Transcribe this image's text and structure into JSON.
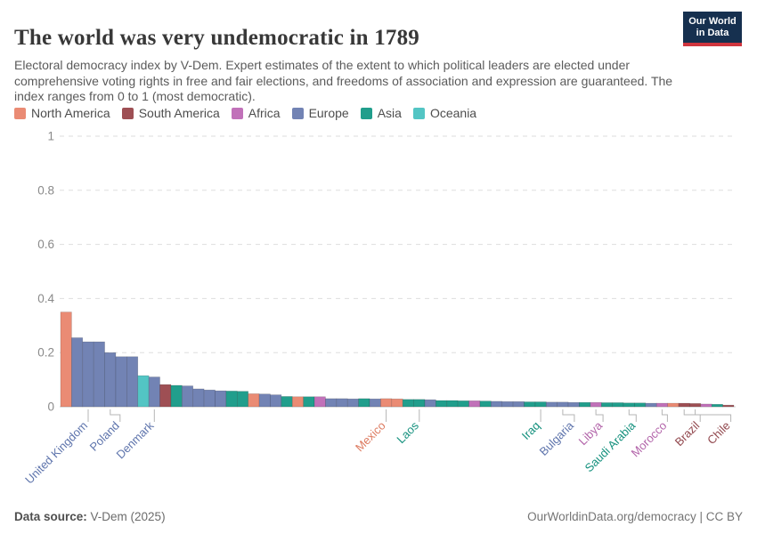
{
  "header": {
    "title": "The world was very undemocratic in 1789",
    "subtitle": "Electoral democracy index by V-Dem. Expert estimates of the extent to which political leaders are elected under comprehensive voting rights in free and fair elections, and freedoms of association and expression are guaranteed. The index ranges from 0 to 1 (most democratic)."
  },
  "logo": {
    "line1": "Our World",
    "line2": "in Data",
    "bg_color": "#16304f",
    "accent_color": "#d0353e"
  },
  "legend": [
    {
      "key": "NA",
      "label": "North America"
    },
    {
      "key": "SA",
      "label": "South America"
    },
    {
      "key": "AF",
      "label": "Africa"
    },
    {
      "key": "EU",
      "label": "Europe"
    },
    {
      "key": "AS",
      "label": "Asia"
    },
    {
      "key": "OC",
      "label": "Oceania"
    }
  ],
  "footer": {
    "source_label": "Data source:",
    "source_value": " V-Dem (2025)",
    "right_text": "OurWorldinData.org/democracy | CC BY"
  },
  "chart_data": {
    "type": "bar",
    "title": "Electoral democracy index, 1789",
    "ylabel": "",
    "xlabel": "",
    "ylim": [
      0,
      1
    ],
    "grid": "dashed-horizontal",
    "y_ticks": [
      {
        "value": 0,
        "label": "0"
      },
      {
        "value": 0.2,
        "label": "0.2"
      },
      {
        "value": 0.4,
        "label": "0.4"
      },
      {
        "value": 0.6,
        "label": "0.6"
      },
      {
        "value": 0.8,
        "label": "0.8"
      },
      {
        "value": 1,
        "label": "1"
      }
    ],
    "continents": {
      "NA": {
        "name": "North America",
        "fill": "#ea8b74",
        "text": "#dd7a5f"
      },
      "SA": {
        "name": "South America",
        "fill": "#9e4f54",
        "text": "#91474d"
      },
      "AF": {
        "name": "Africa",
        "fill": "#c171b9",
        "text": "#b263a9"
      },
      "EU": {
        "name": "Europe",
        "fill": "#7283b4",
        "text": "#5e74ac"
      },
      "AS": {
        "name": "Asia",
        "fill": "#219e8c",
        "text": "#15917e"
      },
      "OC": {
        "name": "Oceania",
        "fill": "#53c5c4",
        "text": "#3ab4b2"
      }
    },
    "bars": [
      {
        "v": 0.35,
        "c": "NA"
      },
      {
        "v": 0.255,
        "c": "EU"
      },
      {
        "v": 0.24,
        "c": "EU"
      },
      {
        "v": 0.24,
        "c": "EU"
      },
      {
        "v": 0.2,
        "c": "EU"
      },
      {
        "v": 0.185,
        "c": "EU"
      },
      {
        "v": 0.185,
        "c": "EU"
      },
      {
        "v": 0.115,
        "c": "OC"
      },
      {
        "v": 0.11,
        "c": "EU"
      },
      {
        "v": 0.082,
        "c": "SA"
      },
      {
        "v": 0.079,
        "c": "AS"
      },
      {
        "v": 0.077,
        "c": "EU"
      },
      {
        "v": 0.066,
        "c": "EU"
      },
      {
        "v": 0.062,
        "c": "EU"
      },
      {
        "v": 0.059,
        "c": "EU"
      },
      {
        "v": 0.058,
        "c": "AS"
      },
      {
        "v": 0.057,
        "c": "AS"
      },
      {
        "v": 0.048,
        "c": "NA"
      },
      {
        "v": 0.047,
        "c": "EU"
      },
      {
        "v": 0.044,
        "c": "EU"
      },
      {
        "v": 0.038,
        "c": "AS"
      },
      {
        "v": 0.037,
        "c": "NA"
      },
      {
        "v": 0.037,
        "c": "AS"
      },
      {
        "v": 0.037,
        "c": "AF"
      },
      {
        "v": 0.03,
        "c": "EU"
      },
      {
        "v": 0.03,
        "c": "EU"
      },
      {
        "v": 0.029,
        "c": "EU"
      },
      {
        "v": 0.03,
        "c": "AS"
      },
      {
        "v": 0.029,
        "c": "EU"
      },
      {
        "v": 0.03,
        "c": "NA"
      },
      {
        "v": 0.029,
        "c": "NA"
      },
      {
        "v": 0.027,
        "c": "AS"
      },
      {
        "v": 0.027,
        "c": "AS"
      },
      {
        "v": 0.026,
        "c": "EU"
      },
      {
        "v": 0.023,
        "c": "AS"
      },
      {
        "v": 0.023,
        "c": "AS"
      },
      {
        "v": 0.022,
        "c": "AS"
      },
      {
        "v": 0.022,
        "c": "AF"
      },
      {
        "v": 0.021,
        "c": "AS"
      },
      {
        "v": 0.02,
        "c": "EU"
      },
      {
        "v": 0.019,
        "c": "EU"
      },
      {
        "v": 0.019,
        "c": "EU"
      },
      {
        "v": 0.018,
        "c": "AS"
      },
      {
        "v": 0.018,
        "c": "AS"
      },
      {
        "v": 0.017,
        "c": "EU"
      },
      {
        "v": 0.017,
        "c": "EU"
      },
      {
        "v": 0.016,
        "c": "EU"
      },
      {
        "v": 0.016,
        "c": "AS"
      },
      {
        "v": 0.016,
        "c": "AF"
      },
      {
        "v": 0.015,
        "c": "AS"
      },
      {
        "v": 0.015,
        "c": "AS"
      },
      {
        "v": 0.014,
        "c": "AS"
      },
      {
        "v": 0.014,
        "c": "AS"
      },
      {
        "v": 0.013,
        "c": "EU"
      },
      {
        "v": 0.013,
        "c": "AF"
      },
      {
        "v": 0.013,
        "c": "NA"
      },
      {
        "v": 0.013,
        "c": "SA"
      },
      {
        "v": 0.012,
        "c": "SA"
      },
      {
        "v": 0.01,
        "c": "AF"
      },
      {
        "v": 0.009,
        "c": "AS"
      },
      {
        "v": 0.006,
        "c": "SA"
      }
    ],
    "bar_labels": [
      {
        "text": "United Kingdom",
        "bar": 3,
        "dx": 0,
        "c": "EU"
      },
      {
        "text": "Poland",
        "bar": 5,
        "dx": 11,
        "c": "EU"
      },
      {
        "text": "Denmark",
        "bar": 9,
        "dx": 0,
        "c": "EU"
      },
      {
        "text": "Mexico",
        "bar": 30,
        "dx": 0,
        "c": "NA"
      },
      {
        "text": "Laos",
        "bar": 33,
        "dx": 0,
        "c": "AS"
      },
      {
        "text": "Iraq",
        "bar": 44,
        "dx": 0,
        "c": "AS"
      },
      {
        "text": "Bulgaria",
        "bar": 46,
        "dx": 13,
        "c": "EU"
      },
      {
        "text": "Libya",
        "bar": 49,
        "dx": 8,
        "c": "AF"
      },
      {
        "text": "Saudi Arabia",
        "bar": 52,
        "dx": 8,
        "c": "AS"
      },
      {
        "text": "Morocco",
        "bar": 55,
        "dx": 6,
        "c": "AF"
      },
      {
        "text": "Brazil",
        "bar": 57,
        "dx": 18,
        "c": "SA"
      },
      {
        "text": "Chile",
        "bar": 58,
        "dx": 40,
        "c": "SA"
      }
    ]
  }
}
